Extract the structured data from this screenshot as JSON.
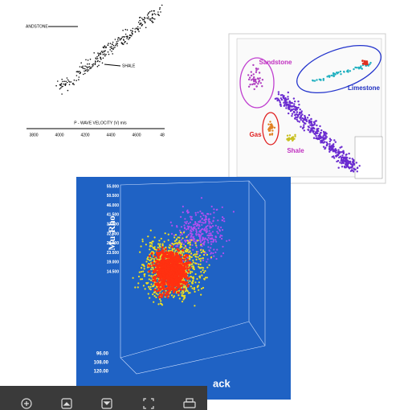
{
  "images": [
    {
      "labels": [
        "ANDSTONE",
        "SHALE"
      ],
      "axis_label": "P - WAVE  VELOCITY (V)  m/s",
      "ticks": [
        "3800",
        "4000",
        "4200",
        "4400",
        "4600",
        "48"
      ]
    },
    {
      "labels": [
        "Sandstone",
        "Limestone",
        "Gas",
        "Shale"
      ]
    },
    {
      "axis_label": "Mu-Rho",
      "ticks": [
        "55.000",
        "50.500",
        "46.000",
        "41.500",
        "37.000",
        "32.500",
        "28.000",
        "23.500",
        "19.000",
        "14.500"
      ],
      "bottom_ticks": [
        "96.00",
        "108.00",
        "120.00"
      ],
      "x_label": "ack"
    }
  ]
}
